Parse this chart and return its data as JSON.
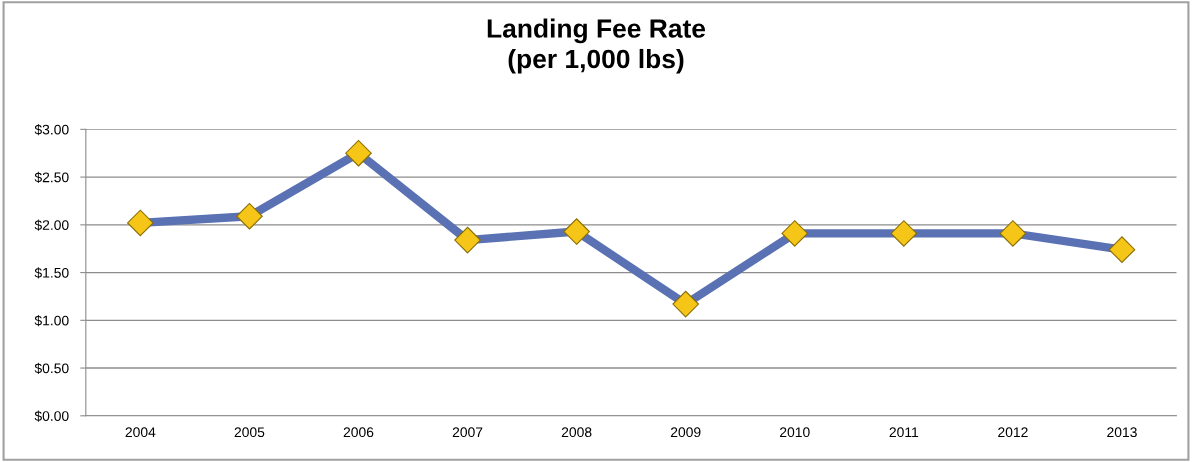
{
  "chart_data": {
    "type": "line",
    "title": "Landing Fee Rate\n(per 1,000 lbs)",
    "categories": [
      "2004",
      "2005",
      "2006",
      "2007",
      "2008",
      "2009",
      "2010",
      "2011",
      "2012",
      "2013"
    ],
    "series": [
      {
        "color": "#5a72b4",
        "values": [
          2.02,
          2.09,
          2.75,
          1.84,
          1.93,
          1.17,
          1.91,
          1.91,
          1.91,
          1.74
        ]
      }
    ],
    "marker": "diamond",
    "ylim": [
      0,
      3
    ],
    "yticks": [
      {
        "value": 0,
        "label": "$0.00"
      },
      {
        "value": 0.5,
        "label": "$0.50"
      },
      {
        "value": 1,
        "label": "$1.00"
      },
      {
        "value": 1.5,
        "label": "$1.50"
      },
      {
        "value": 2,
        "label": "$2.00"
      },
      {
        "value": 2.5,
        "label": "$2.50"
      },
      {
        "value": 3,
        "label": "$3.00"
      }
    ],
    "grid": "y",
    "legend": false
  }
}
